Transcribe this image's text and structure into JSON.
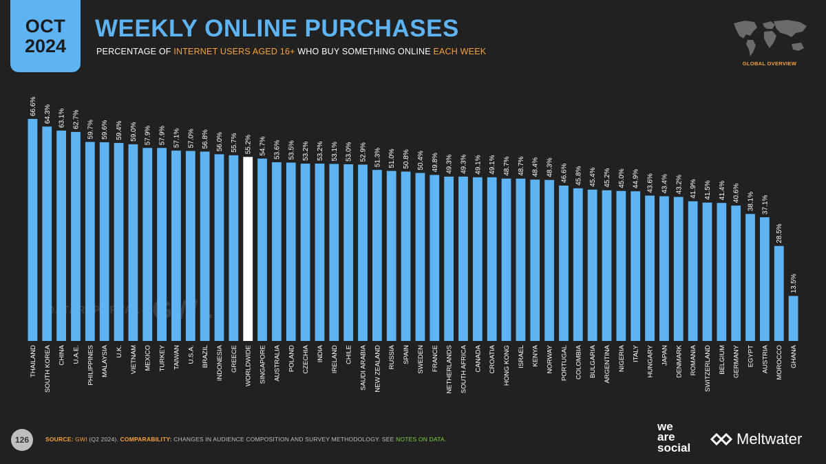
{
  "header": {
    "month": "OCT",
    "year": "2024",
    "title": "WEEKLY ONLINE PURCHASES",
    "subtitle_parts": [
      "PERCENTAGE OF ",
      "INTERNET USERS AGED 16+",
      " WHO BUY SOMETHING ONLINE ",
      "EACH WEEK"
    ],
    "badge": "GLOBAL OVERVIEW"
  },
  "watermark": {
    "datareportal": "DATAREPORTAL",
    "gwi": "GWI."
  },
  "footer": {
    "page_number": "126",
    "source_label": "SOURCE:",
    "source_gwi": "GWI",
    "source_rest": " (Q2 2024).",
    "comparability_label": "COMPARABILITY:",
    "comparability_text": " CHANGES IN AUDIENCE COMPOSITION AND SURVEY METHODOLOGY. SEE ",
    "notes_link": "NOTES ON DATA",
    "end": "."
  },
  "brands": {
    "we_are_social": [
      "we",
      "are",
      "social"
    ],
    "meltwater": "Meltwater"
  },
  "colors": {
    "bar": "#5eb3f2",
    "highlight_bar": "#ffffff",
    "background": "#212121",
    "accent": "#f7a23b"
  },
  "chart_data": {
    "type": "bar",
    "title": "WEEKLY ONLINE PURCHASES",
    "highlight": "WORLDWIDE",
    "categories": [
      "THAILAND",
      "SOUTH KOREA",
      "CHINA",
      "U.A.E.",
      "PHILIPPINES",
      "MALAYSIA",
      "U.K.",
      "VIETNAM",
      "MEXICO",
      "TURKEY",
      "TAIWAN",
      "U.S.A.",
      "BRAZIL",
      "INDONESIA",
      "GREECE",
      "WORLDWIDE",
      "SINGAPORE",
      "AUSTRALIA",
      "POLAND",
      "CZECHIA",
      "INDIA",
      "IRELAND",
      "CHILE",
      "SAUDI ARABIA",
      "NEW ZEALAND",
      "RUSSIA",
      "SPAIN",
      "SWEDEN",
      "FRANCE",
      "NETHERLANDS",
      "SOUTH AFRICA",
      "CANADA",
      "CROATIA",
      "HONG KONG",
      "ISRAEL",
      "KENYA",
      "NORWAY",
      "PORTUGAL",
      "COLOMBIA",
      "BULGARIA",
      "ARGENTINA",
      "NIGERIA",
      "ITALY",
      "HUNGARY",
      "JAPAN",
      "DENMARK",
      "ROMANIA",
      "SWITZERLAND",
      "BELGIUM",
      "GERMANY",
      "EGYPT",
      "AUSTRIA",
      "MOROCCO",
      "GHANA"
    ],
    "values": [
      66.6,
      64.3,
      63.1,
      62.7,
      59.7,
      59.6,
      59.4,
      59.0,
      57.9,
      57.9,
      57.1,
      57.0,
      56.8,
      56.0,
      55.7,
      55.2,
      54.7,
      53.6,
      53.5,
      53.2,
      53.2,
      53.1,
      53.0,
      52.9,
      51.3,
      51.0,
      50.8,
      50.4,
      49.8,
      49.3,
      49.3,
      49.1,
      49.1,
      48.7,
      48.7,
      48.4,
      48.3,
      46.6,
      45.8,
      45.4,
      45.2,
      45.0,
      44.9,
      43.6,
      43.4,
      43.2,
      41.9,
      41.5,
      41.4,
      40.6,
      38.1,
      37.1,
      28.5,
      13.5
    ],
    "labels": [
      "66.6%",
      "64.3%",
      "63.1%",
      "62.7%",
      "59.7%",
      "59.6%",
      "59.4%",
      "59.0%",
      "57.9%",
      "57.9%",
      "57.1%",
      "57.0%",
      "56.8%",
      "56.0%",
      "55.7%",
      "55.2%",
      "54.7%",
      "53.6%",
      "53.5%",
      "53.2%",
      "53.2%",
      "53.1%",
      "53.0%",
      "52.9%",
      "51.3%",
      "51.0%",
      "50.8%",
      "50.4%",
      "49.8%",
      "49.3%",
      "49.3%",
      "49.1%",
      "49.1%",
      "48.7%",
      "48.7%",
      "48.4%",
      "48.3%",
      "46.6%",
      "45.8%",
      "45.4%",
      "45.2%",
      "45.0%",
      "44.9%",
      "43.6%",
      "43.4%",
      "43.2%",
      "41.9%",
      "41.5%",
      "41.4%",
      "40.6%",
      "38.1%",
      "37.1%",
      "28.5%",
      "13.5%"
    ],
    "ylim": [
      0,
      66.6
    ],
    "grid": false,
    "legend": "none"
  }
}
